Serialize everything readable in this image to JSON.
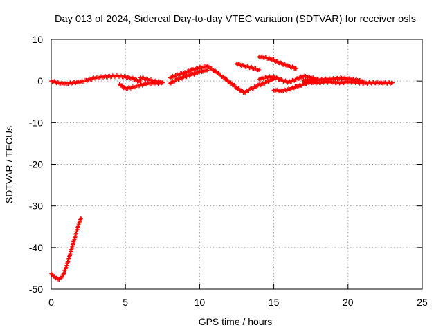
{
  "chart_data": {
    "type": "scatter",
    "title": "Day 013 of 2024, Sidereal Day-to-day VTEC variation (SDTVAR) for receiver osls",
    "xlabel": "GPS time / hours",
    "ylabel": "SDTVAR / TECUs",
    "xlim": [
      0,
      25
    ],
    "ylim": [
      -50,
      10
    ],
    "xticks": [
      "0",
      "5",
      "10",
      "15",
      "20",
      "25"
    ],
    "yticks": [
      "10",
      "0",
      "-10",
      "-20",
      "-30",
      "-40",
      "-50"
    ],
    "grid": true,
    "marker": "plus",
    "color": "#ff0000",
    "series": [
      {
        "name": "early-recovery",
        "x": [
          0.0,
          0.2,
          0.4,
          0.6,
          0.8,
          1.0,
          1.2,
          1.4,
          1.6,
          1.8,
          2.0
        ],
        "y": [
          -46.2,
          -47.0,
          -47.6,
          -47.5,
          -46.6,
          -44.8,
          -42.5,
          -40.0,
          -37.5,
          -35.0,
          -33.0
        ]
      },
      {
        "name": "track-a",
        "x": [
          0.0,
          0.5,
          1.0,
          1.5,
          2.0,
          2.5,
          3.0,
          3.5,
          4.0,
          4.5,
          5.0,
          5.5,
          6.0
        ],
        "y": [
          0.0,
          -0.5,
          -0.6,
          -0.4,
          -0.2,
          0.3,
          0.8,
          1.0,
          1.1,
          1.2,
          1.0,
          0.6,
          -0.2
        ]
      },
      {
        "name": "track-b",
        "x": [
          4.6,
          5.0,
          5.5,
          6.0,
          6.5,
          7.0,
          7.5
        ],
        "y": [
          -0.8,
          -1.8,
          -1.5,
          -1.0,
          -0.6,
          -0.5,
          -0.4
        ]
      },
      {
        "name": "track-c",
        "x": [
          6.0,
          6.5,
          7.0,
          7.5
        ],
        "y": [
          0.8,
          0.4,
          -0.1,
          -0.3
        ]
      },
      {
        "name": "track-d",
        "x": [
          8.0,
          8.5,
          9.0,
          9.5,
          10.0,
          10.5,
          11.0,
          11.5,
          12.0,
          12.5,
          13.0,
          13.5,
          14.0,
          14.5,
          15.0
        ],
        "y": [
          0.8,
          1.5,
          2.0,
          2.7,
          3.2,
          3.6,
          2.5,
          1.2,
          -0.2,
          -1.6,
          -2.8,
          -1.8,
          -1.0,
          -0.3,
          0.6
        ]
      },
      {
        "name": "track-e",
        "x": [
          8.0,
          8.5,
          9.0,
          9.5,
          10.0,
          10.5
        ],
        "y": [
          -0.5,
          0.4,
          1.0,
          1.6,
          2.2,
          2.6
        ]
      },
      {
        "name": "track-f",
        "x": [
          12.5,
          13.0,
          13.5,
          14.0
        ],
        "y": [
          4.2,
          3.6,
          3.2,
          2.7
        ]
      },
      {
        "name": "track-g",
        "x": [
          14.0,
          14.5,
          15.0,
          15.5,
          16.0,
          16.5
        ],
        "y": [
          5.8,
          5.6,
          5.0,
          4.2,
          3.6,
          3.0
        ]
      },
      {
        "name": "track-h",
        "x": [
          14.0,
          14.5,
          15.0,
          15.5,
          16.0,
          16.5,
          17.0,
          17.5,
          18.0
        ],
        "y": [
          0.4,
          0.9,
          1.0,
          0.2,
          -0.3,
          0.4,
          1.2,
          0.8,
          0.3
        ]
      },
      {
        "name": "track-i",
        "x": [
          15.0,
          15.5,
          16.0,
          16.5,
          17.0,
          17.5
        ],
        "y": [
          -2.2,
          -2.4,
          -2.0,
          -1.4,
          -0.8,
          -0.2
        ]
      },
      {
        "name": "track-j",
        "x": [
          17.0,
          17.5,
          18.0,
          18.5,
          19.0,
          19.5,
          20.0,
          20.5,
          21.0,
          21.5,
          22.0,
          22.5,
          23.0
        ],
        "y": [
          -0.2,
          -0.3,
          -0.4,
          -0.2,
          -0.3,
          -0.4,
          -0.2,
          -0.3,
          -0.5,
          -0.4,
          -0.4,
          -0.5,
          -0.4
        ]
      },
      {
        "name": "track-k",
        "x": [
          17.0,
          18.0,
          19.0,
          19.5,
          20.0,
          20.5,
          21.0
        ],
        "y": [
          0.2,
          0.3,
          0.5,
          0.7,
          0.5,
          0.3,
          0.0
        ]
      }
    ]
  }
}
